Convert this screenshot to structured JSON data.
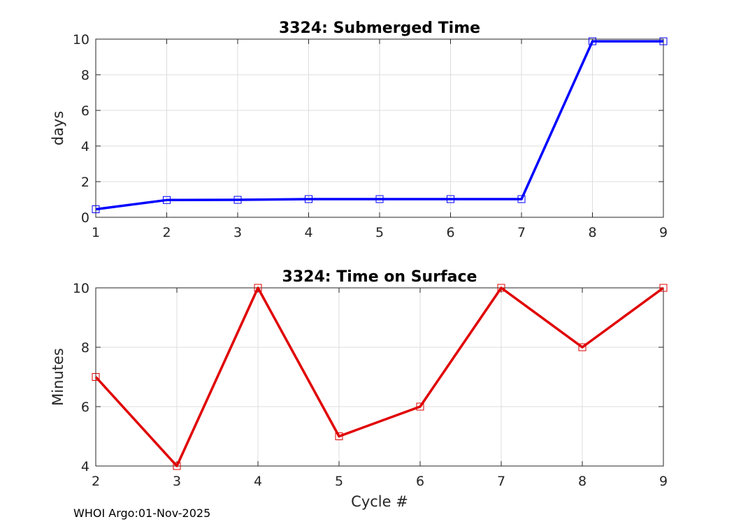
{
  "chart_data": [
    {
      "type": "line",
      "title": "3324: Submerged Time",
      "xlabel": "",
      "ylabel": "days",
      "x": [
        1,
        2,
        3,
        4,
        5,
        6,
        7,
        8,
        9
      ],
      "xticks": [
        1,
        2,
        3,
        4,
        5,
        6,
        7,
        8,
        9
      ],
      "yticks": [
        0,
        2,
        4,
        6,
        8,
        10
      ],
      "xlim": [
        1,
        9
      ],
      "ylim": [
        0,
        10
      ],
      "grid": true,
      "marker": "square",
      "color": "#0000ff",
      "series": [
        {
          "values": [
            0.45,
            0.97,
            0.98,
            1.02,
            1.02,
            1.02,
            1.02,
            9.88,
            9.88
          ]
        }
      ]
    },
    {
      "type": "line",
      "title": "3324: Time on Surface",
      "xlabel": "Cycle #",
      "ylabel": "Minutes",
      "x": [
        2,
        3,
        4,
        5,
        6,
        7,
        8,
        9
      ],
      "xticks": [
        2,
        3,
        4,
        5,
        6,
        7,
        8,
        9
      ],
      "yticks": [
        4,
        6,
        8,
        10
      ],
      "xlim": [
        2,
        9
      ],
      "ylim": [
        4,
        10
      ],
      "grid": true,
      "marker": "square",
      "color": "#e00000",
      "series": [
        {
          "values": [
            7,
            4,
            10,
            5,
            6,
            10,
            8,
            10
          ]
        }
      ]
    }
  ],
  "footer": "WHOI Argo:01-Nov-2025"
}
